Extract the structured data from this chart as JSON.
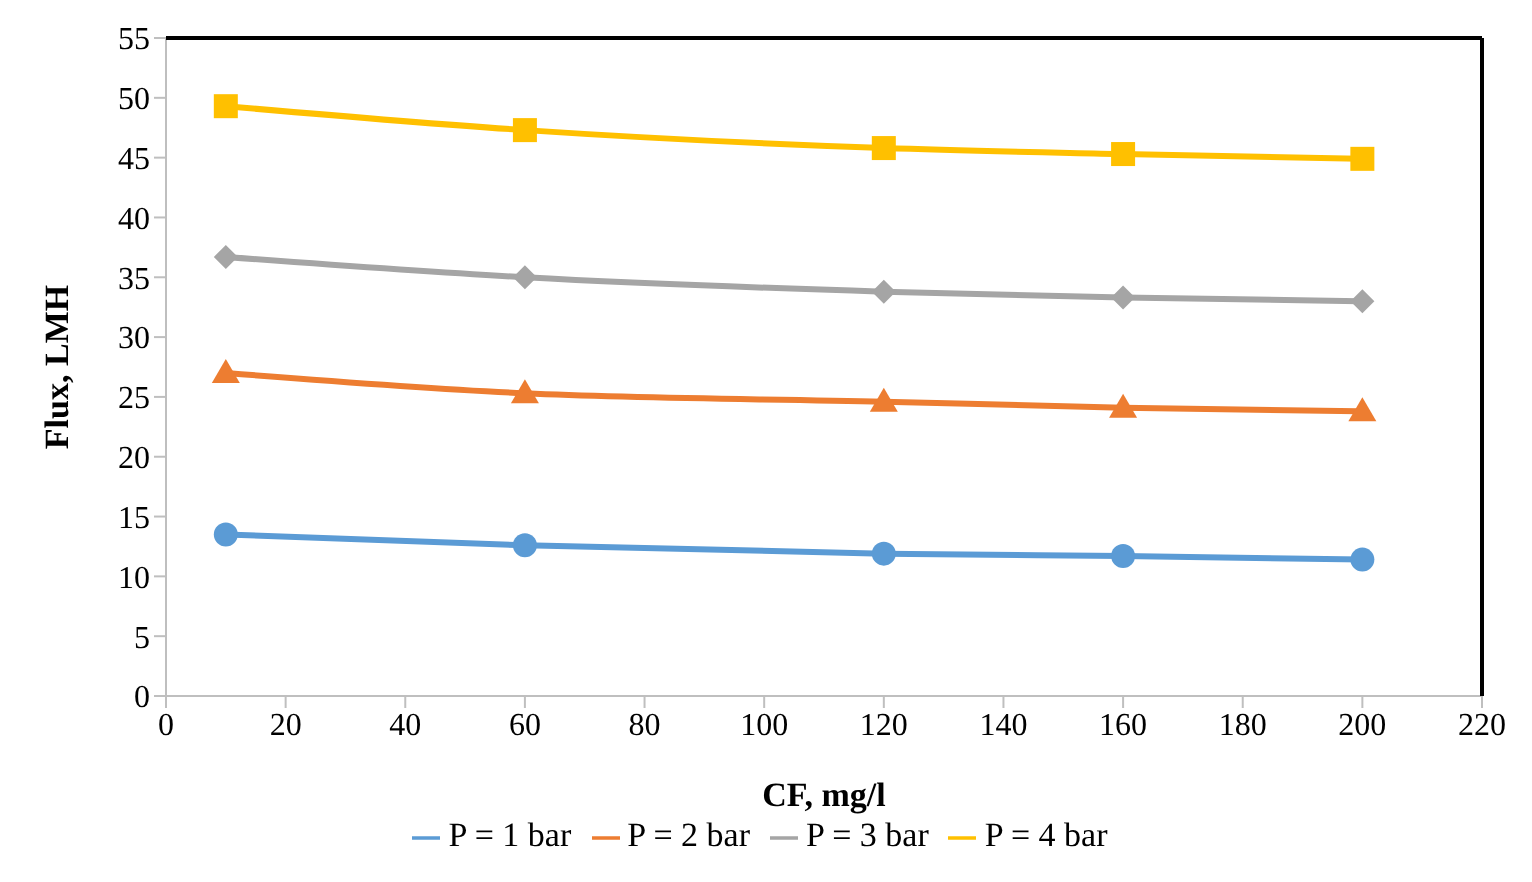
{
  "chart_data": {
    "type": "line",
    "xlabel": "CF, mg/l",
    "ylabel": "Flux, LMH",
    "x": [
      10,
      60,
      120,
      160,
      200
    ],
    "xlim": [
      0,
      220
    ],
    "xticks": [
      0,
      20,
      40,
      60,
      80,
      100,
      120,
      140,
      160,
      180,
      200,
      220
    ],
    "ylim": [
      0,
      55
    ],
    "yticks": [
      0,
      5,
      10,
      15,
      20,
      25,
      30,
      35,
      40,
      45,
      50,
      55
    ],
    "grid": false,
    "legend": "bottom",
    "line_style": "solid",
    "series": [
      {
        "name": "P = 1 bar",
        "color": "#5b9bd5",
        "marker": "circle",
        "values": [
          13.5,
          12.6,
          11.9,
          11.7,
          11.4
        ]
      },
      {
        "name": "P = 2 bar",
        "color": "#ed7d31",
        "marker": "triangle",
        "values": [
          27.0,
          25.3,
          24.6,
          24.1,
          23.8
        ]
      },
      {
        "name": "P = 3 bar",
        "color": "#a5a5a5",
        "marker": "diamond",
        "values": [
          36.7,
          35.0,
          33.8,
          33.3,
          33.0
        ]
      },
      {
        "name": "P = 4 bar",
        "color": "#ffc000",
        "marker": "square",
        "values": [
          49.3,
          47.3,
          45.8,
          45.3,
          44.9
        ]
      }
    ]
  }
}
